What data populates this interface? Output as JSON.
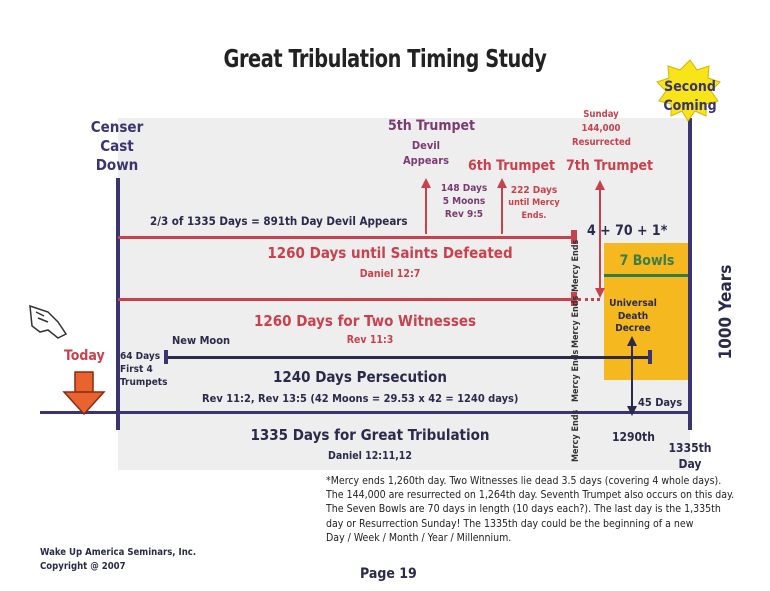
{
  "title": "Great Tribulation Timing Study",
  "second_coming": [
    "Second",
    "Coming"
  ],
  "censer": [
    "Censer",
    "Cast",
    "Down"
  ],
  "today": "Today",
  "fifth_trumpet": "5th Trumpet",
  "devil_appears": [
    "Devil",
    "Appears"
  ],
  "sixth_trumpet": "6th Trumpet",
  "seventh_trumpet": "7th Trumpet",
  "sunday_note": [
    "Sunday",
    "144,000",
    "Resurrected"
  ],
  "days148": [
    "148 Days",
    "5 Moons",
    "Rev 9:5"
  ],
  "days222": [
    "222 Days",
    "until Mercy",
    "Ends."
  ],
  "two_thirds": "2/3 of 1335 Days = 891th Day Devil Appears",
  "formula": "4 + 70 + 1*",
  "bar1": {
    "label": "1260 Days until Saints Defeated",
    "ref": "Daniel 12:7"
  },
  "bar2": {
    "label": "1260 Days for Two Witnesses",
    "ref": "Rev 11:3"
  },
  "bar3": {
    "label": "1240 Days Persecution",
    "ref": "Rev 11:2, Rev 13:5 (42 Moons = 29.53 x 42 = 1240 days)"
  },
  "bar4": {
    "label": "1335 Days for Great Tribulation",
    "ref": "Daniel 12:11,12"
  },
  "new_moon": "New Moon",
  "days64": [
    "64 Days",
    "First 4",
    "Trumpets"
  ],
  "mercy_ends": "Mercy Ends",
  "seven_bowls": "7 Bowls",
  "universal": [
    "Universal",
    "Death",
    "Decree"
  ],
  "days45": "45 Days",
  "d1290": "1290th",
  "d1335": [
    "1335th",
    "Day"
  ],
  "millennium": "1000 Years",
  "footnote": [
    "*Mercy ends 1,260th day.  Two Witnesses lie dead 3.5 days (covering 4 whole days).",
    "The 144,000 are resurrected on 1,264th day. Seventh Trumpet also occurs on this day.",
    "The Seven Bowls are 70 days in length (10 days each?). The last day is the 1,335th",
    "day or Resurrection Sunday!   The 1335th day could be the beginning of a new",
    "Day / Week / Month / Year / Millennium."
  ],
  "publisher": [
    "Wake Up America Seminars, Inc.",
    "Copyright @ 2007"
  ],
  "page": "Page 19",
  "colors": {
    "red": "#c8414c",
    "purple": "#3a3570",
    "gold": "#f5b81e",
    "panel": "#eeeeee",
    "star": "#f7e51a"
  },
  "icons": [
    "pointing-hand-icon",
    "down-arrow-icon",
    "starburst-icon"
  ]
}
